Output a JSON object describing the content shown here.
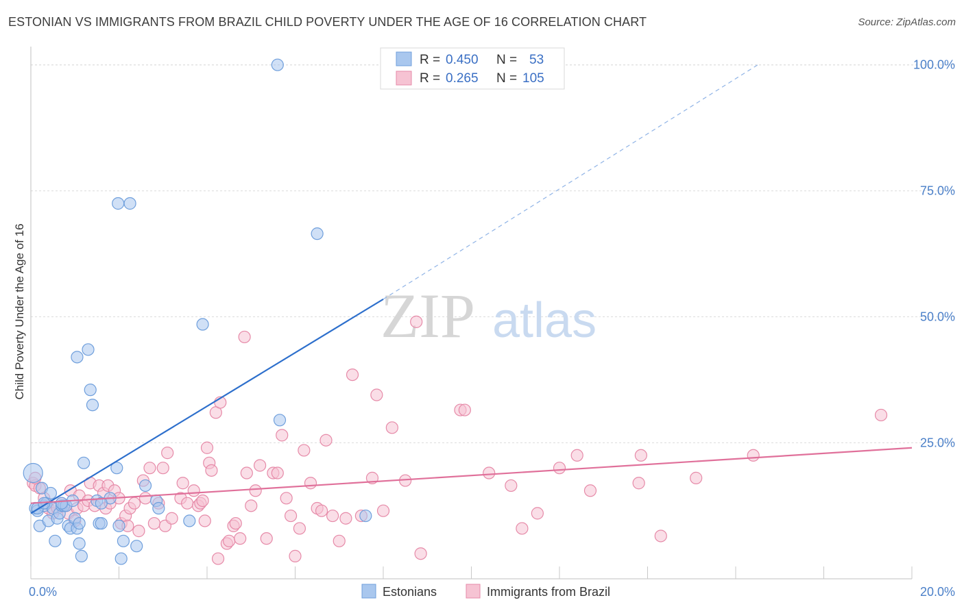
{
  "title": "ESTONIAN VS IMMIGRANTS FROM BRAZIL CHILD POVERTY UNDER THE AGE OF 16 CORRELATION CHART",
  "source": "Source: ZipAtlas.com",
  "watermark": {
    "part1": "ZIP",
    "part2": "atlas"
  },
  "colors": {
    "blue_fill": "#a9c7ee",
    "blue_stroke": "#6f9fdc",
    "blue_line": "#2d6fcc",
    "pink_fill": "#f6c3d3",
    "pink_stroke": "#e68aa8",
    "pink_line": "#e0709a",
    "grid": "#dcdcdc",
    "tick_text": "#4a7fc8"
  },
  "legend": {
    "rows": [
      {
        "r_label": "R =",
        "r_value": "0.450",
        "n_label": "N =",
        "n_value": "53",
        "series": "blue"
      },
      {
        "r_label": "R =",
        "r_value": "0.265",
        "n_label": "N =",
        "n_value": "105",
        "series": "pink"
      }
    ]
  },
  "chart_data": {
    "type": "scatter",
    "title": "ESTONIAN VS IMMIGRANTS FROM BRAZIL CHILD POVERTY UNDER THE AGE OF 16 CORRELATION CHART",
    "xlabel": "",
    "ylabel": "Child Poverty Under the Age of 16",
    "xlim": [
      0,
      20
    ],
    "ylim": [
      -2,
      102
    ],
    "x_ticks": [
      {
        "value": 0,
        "label": "0.0%"
      },
      {
        "value": 20,
        "label": "20.0%"
      }
    ],
    "y_ticks": [
      {
        "value": 25,
        "label": "25.0%"
      },
      {
        "value": 50,
        "label": "50.0%"
      },
      {
        "value": 75,
        "label": "75.0%"
      },
      {
        "value": 100,
        "label": "100.0%"
      }
    ],
    "series": [
      {
        "name": "Estonians",
        "color": "blue",
        "R": 0.45,
        "N": 53,
        "trend": {
          "x0": 0,
          "y0": 11,
          "x1": 8.0,
          "y1": 53.5,
          "dash_x1": 16.5,
          "dash_y1": 100
        },
        "points": [
          [
            0.05,
            19
          ],
          [
            0.1,
            12
          ],
          [
            0.15,
            11.5
          ],
          [
            0.2,
            8.5
          ],
          [
            0.25,
            16
          ],
          [
            0.3,
            12.5
          ],
          [
            0.35,
            13
          ],
          [
            0.4,
            9.5
          ],
          [
            0.45,
            15
          ],
          [
            0.5,
            12
          ],
          [
            0.55,
            5.5
          ],
          [
            0.6,
            10
          ],
          [
            0.65,
            11
          ],
          [
            0.7,
            12.5
          ],
          [
            0.75,
            12.5
          ],
          [
            0.8,
            12.5
          ],
          [
            0.85,
            8.5
          ],
          [
            0.9,
            8
          ],
          [
            0.95,
            13.5
          ],
          [
            1.0,
            10
          ],
          [
            1.05,
            8
          ],
          [
            1.1,
            9
          ],
          [
            1.1,
            5
          ],
          [
            1.05,
            42
          ],
          [
            1.15,
            2.5
          ],
          [
            1.2,
            21
          ],
          [
            1.3,
            43.5
          ],
          [
            1.35,
            35.5
          ],
          [
            1.4,
            32.5
          ],
          [
            1.5,
            13.5
          ],
          [
            1.55,
            9
          ],
          [
            1.6,
            9
          ],
          [
            1.8,
            14
          ],
          [
            1.95,
            20
          ],
          [
            2.0,
            8.5
          ],
          [
            2.05,
            2
          ],
          [
            2.1,
            5.5
          ],
          [
            1.98,
            72.5
          ],
          [
            2.25,
            72.5
          ],
          [
            2.4,
            4.5
          ],
          [
            2.6,
            16.5
          ],
          [
            2.85,
            13.5
          ],
          [
            2.9,
            12
          ],
          [
            3.6,
            9.5
          ],
          [
            3.9,
            48.5
          ],
          [
            5.6,
            100
          ],
          [
            5.65,
            29.5
          ],
          [
            6.5,
            66.5
          ],
          [
            7.6,
            10.5
          ],
          [
            0.15,
            12
          ],
          [
            0.3,
            13
          ],
          [
            0.7,
            13
          ],
          [
            1.6,
            13
          ]
        ]
      },
      {
        "name": "Immigrants from Brazil",
        "color": "pink",
        "R": 0.265,
        "N": 105,
        "trend": {
          "x0": 0,
          "y0": 13.0,
          "x1": 20,
          "y1": 24.0
        },
        "points": [
          [
            0.05,
            17
          ],
          [
            0.1,
            16.5
          ],
          [
            0.2,
            16
          ],
          [
            0.3,
            14
          ],
          [
            0.4,
            12
          ],
          [
            0.5,
            11
          ],
          [
            0.6,
            12
          ],
          [
            0.7,
            13
          ],
          [
            0.8,
            12.5
          ],
          [
            0.85,
            11
          ],
          [
            0.9,
            15.5
          ],
          [
            1.0,
            9.5
          ],
          [
            1.05,
            12
          ],
          [
            1.1,
            14.5
          ],
          [
            1.2,
            12.5
          ],
          [
            1.3,
            13.5
          ],
          [
            1.35,
            17
          ],
          [
            1.45,
            12.5
          ],
          [
            1.55,
            16.5
          ],
          [
            1.65,
            15
          ],
          [
            1.7,
            12
          ],
          [
            1.75,
            16.5
          ],
          [
            1.8,
            13
          ],
          [
            1.9,
            15.5
          ],
          [
            2.0,
            14
          ],
          [
            2.05,
            9
          ],
          [
            2.15,
            10.5
          ],
          [
            2.2,
            8.5
          ],
          [
            2.25,
            12
          ],
          [
            2.35,
            13
          ],
          [
            2.45,
            7.5
          ],
          [
            2.55,
            17.5
          ],
          [
            2.6,
            14
          ],
          [
            2.7,
            20
          ],
          [
            2.8,
            9
          ],
          [
            2.9,
            13
          ],
          [
            3.0,
            20
          ],
          [
            3.05,
            8.5
          ],
          [
            3.1,
            23
          ],
          [
            3.2,
            10
          ],
          [
            3.4,
            14
          ],
          [
            3.45,
            17
          ],
          [
            3.55,
            13
          ],
          [
            3.7,
            15.5
          ],
          [
            3.8,
            12.5
          ],
          [
            3.85,
            13
          ],
          [
            3.9,
            13.5
          ],
          [
            3.95,
            9.5
          ],
          [
            4.0,
            24
          ],
          [
            4.05,
            21
          ],
          [
            4.1,
            19.5
          ],
          [
            4.2,
            31
          ],
          [
            4.25,
            2
          ],
          [
            4.3,
            33
          ],
          [
            4.45,
            5
          ],
          [
            4.5,
            5.5
          ],
          [
            4.6,
            8.5
          ],
          [
            4.65,
            9
          ],
          [
            4.75,
            6
          ],
          [
            4.85,
            46
          ],
          [
            4.9,
            19
          ],
          [
            5.0,
            12.5
          ],
          [
            5.1,
            15.5
          ],
          [
            5.2,
            20.5
          ],
          [
            5.35,
            6
          ],
          [
            5.5,
            19
          ],
          [
            5.6,
            19
          ],
          [
            5.7,
            26.5
          ],
          [
            5.8,
            14
          ],
          [
            5.9,
            10.5
          ],
          [
            6.0,
            2.5
          ],
          [
            6.1,
            8
          ],
          [
            6.2,
            23.5
          ],
          [
            6.35,
            17
          ],
          [
            6.5,
            12
          ],
          [
            6.6,
            11.5
          ],
          [
            6.7,
            25.5
          ],
          [
            6.85,
            10.5
          ],
          [
            7.0,
            5.5
          ],
          [
            7.15,
            10
          ],
          [
            7.3,
            38.5
          ],
          [
            7.5,
            10.5
          ],
          [
            7.75,
            18
          ],
          [
            7.85,
            34.5
          ],
          [
            8.0,
            11.5
          ],
          [
            8.2,
            28
          ],
          [
            8.5,
            17.5
          ],
          [
            8.75,
            49
          ],
          [
            8.85,
            3
          ],
          [
            9.75,
            31.5
          ],
          [
            9.85,
            31.5
          ],
          [
            10.4,
            19
          ],
          [
            10.9,
            16.5
          ],
          [
            11.15,
            8
          ],
          [
            11.5,
            11
          ],
          [
            12.0,
            20
          ],
          [
            12.4,
            22.5
          ],
          [
            12.7,
            15.5
          ],
          [
            13.8,
            17
          ],
          [
            13.85,
            22.5
          ],
          [
            14.3,
            6.5
          ],
          [
            15.1,
            18
          ],
          [
            16.4,
            22.5
          ],
          [
            19.3,
            30.5
          ],
          [
            0.1,
            18
          ]
        ]
      }
    ]
  }
}
